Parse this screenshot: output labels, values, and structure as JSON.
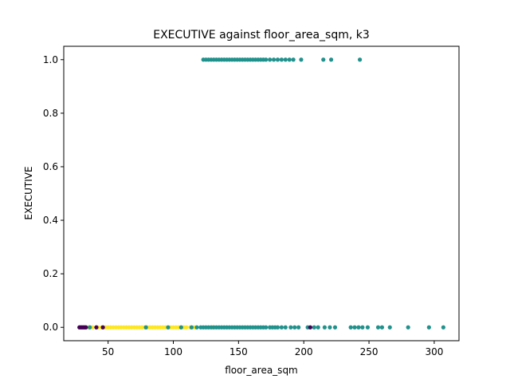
{
  "chart_data": {
    "type": "scatter",
    "title": "EXECUTIVE against floor_area_sqm, k3",
    "xlabel": "floor_area_sqm",
    "ylabel": "EXECUTIVE",
    "xlim": [
      16,
      319
    ],
    "ylim": [
      -0.05,
      1.05
    ],
    "xticks": [
      50,
      100,
      150,
      200,
      250,
      300
    ],
    "yticks": [
      0.0,
      0.2,
      0.4,
      0.6,
      0.8,
      1.0
    ],
    "xtick_labels": [
      "50",
      "100",
      "150",
      "200",
      "250",
      "300"
    ],
    "ytick_labels": [
      "0.0",
      "0.2",
      "0.4",
      "0.6",
      "0.8",
      "1.0"
    ],
    "grid": false,
    "legend": "none",
    "colors": {
      "cluster_purple": "#440154",
      "cluster_teal": "#21918c",
      "cluster_yellow": "#fde725"
    },
    "series": [
      {
        "color": "#fde725",
        "points": [
          {
            "x": 35,
            "y": 0
          },
          {
            "x": 38,
            "y": 0
          },
          {
            "x": 42,
            "y": 0
          },
          {
            "x": 45,
            "y": 0
          },
          {
            "x": 48,
            "y": 0
          },
          {
            "x": 50,
            "y": 0
          },
          {
            "x": 52,
            "y": 0
          },
          {
            "x": 54,
            "y": 0
          },
          {
            "x": 56,
            "y": 0
          },
          {
            "x": 58,
            "y": 0
          },
          {
            "x": 60,
            "y": 0
          },
          {
            "x": 62,
            "y": 0
          },
          {
            "x": 64,
            "y": 0
          },
          {
            "x": 66,
            "y": 0
          },
          {
            "x": 68,
            "y": 0
          },
          {
            "x": 70,
            "y": 0
          },
          {
            "x": 72,
            "y": 0
          },
          {
            "x": 74,
            "y": 0
          },
          {
            "x": 76,
            "y": 0
          },
          {
            "x": 78,
            "y": 0
          },
          {
            "x": 80,
            "y": 0
          },
          {
            "x": 82,
            "y": 0
          },
          {
            "x": 84,
            "y": 0
          },
          {
            "x": 86,
            "y": 0
          },
          {
            "x": 88,
            "y": 0
          },
          {
            "x": 90,
            "y": 0
          },
          {
            "x": 92,
            "y": 0
          },
          {
            "x": 94,
            "y": 0
          },
          {
            "x": 96,
            "y": 0
          },
          {
            "x": 98,
            "y": 0
          },
          {
            "x": 100,
            "y": 0
          },
          {
            "x": 102,
            "y": 0
          },
          {
            "x": 104,
            "y": 0
          },
          {
            "x": 106,
            "y": 0
          },
          {
            "x": 108,
            "y": 0
          },
          {
            "x": 110,
            "y": 0
          },
          {
            "x": 113,
            "y": 0
          },
          {
            "x": 116,
            "y": 0
          },
          {
            "x": 130,
            "y": 0
          }
        ]
      },
      {
        "color": "#21918c",
        "points": [
          {
            "x": 36,
            "y": 0
          },
          {
            "x": 79,
            "y": 0
          },
          {
            "x": 96,
            "y": 0
          },
          {
            "x": 106,
            "y": 0
          },
          {
            "x": 114,
            "y": 0
          },
          {
            "x": 118,
            "y": 0
          },
          {
            "x": 121,
            "y": 0
          },
          {
            "x": 123,
            "y": 0
          },
          {
            "x": 125,
            "y": 0
          },
          {
            "x": 127,
            "y": 0
          },
          {
            "x": 129,
            "y": 0
          },
          {
            "x": 131,
            "y": 0
          },
          {
            "x": 133,
            "y": 0
          },
          {
            "x": 135,
            "y": 0
          },
          {
            "x": 137,
            "y": 0
          },
          {
            "x": 139,
            "y": 0
          },
          {
            "x": 141,
            "y": 0
          },
          {
            "x": 143,
            "y": 0
          },
          {
            "x": 145,
            "y": 0
          },
          {
            "x": 147,
            "y": 0
          },
          {
            "x": 149,
            "y": 0
          },
          {
            "x": 151,
            "y": 0
          },
          {
            "x": 153,
            "y": 0
          },
          {
            "x": 155,
            "y": 0
          },
          {
            "x": 157,
            "y": 0
          },
          {
            "x": 159,
            "y": 0
          },
          {
            "x": 161,
            "y": 0
          },
          {
            "x": 163,
            "y": 0
          },
          {
            "x": 165,
            "y": 0
          },
          {
            "x": 167,
            "y": 0
          },
          {
            "x": 169,
            "y": 0
          },
          {
            "x": 171,
            "y": 0
          },
          {
            "x": 174,
            "y": 0
          },
          {
            "x": 176,
            "y": 0
          },
          {
            "x": 178,
            "y": 0
          },
          {
            "x": 180,
            "y": 0
          },
          {
            "x": 183,
            "y": 0
          },
          {
            "x": 186,
            "y": 0
          },
          {
            "x": 190,
            "y": 0
          },
          {
            "x": 193,
            "y": 0
          },
          {
            "x": 196,
            "y": 0
          },
          {
            "x": 203,
            "y": 0
          },
          {
            "x": 208,
            "y": 0
          },
          {
            "x": 211,
            "y": 0
          },
          {
            "x": 216,
            "y": 0
          },
          {
            "x": 220,
            "y": 0
          },
          {
            "x": 224,
            "y": 0
          },
          {
            "x": 236,
            "y": 0
          },
          {
            "x": 239,
            "y": 0
          },
          {
            "x": 242,
            "y": 0
          },
          {
            "x": 245,
            "y": 0
          },
          {
            "x": 249,
            "y": 0
          },
          {
            "x": 257,
            "y": 0
          },
          {
            "x": 260,
            "y": 0
          },
          {
            "x": 266,
            "y": 0
          },
          {
            "x": 280,
            "y": 0
          },
          {
            "x": 296,
            "y": 0
          },
          {
            "x": 307,
            "y": 0
          },
          {
            "x": 123,
            "y": 1
          },
          {
            "x": 125,
            "y": 1
          },
          {
            "x": 127,
            "y": 1
          },
          {
            "x": 129,
            "y": 1
          },
          {
            "x": 131,
            "y": 1
          },
          {
            "x": 133,
            "y": 1
          },
          {
            "x": 135,
            "y": 1
          },
          {
            "x": 137,
            "y": 1
          },
          {
            "x": 139,
            "y": 1
          },
          {
            "x": 141,
            "y": 1
          },
          {
            "x": 143,
            "y": 1
          },
          {
            "x": 145,
            "y": 1
          },
          {
            "x": 147,
            "y": 1
          },
          {
            "x": 149,
            "y": 1
          },
          {
            "x": 151,
            "y": 1
          },
          {
            "x": 153,
            "y": 1
          },
          {
            "x": 155,
            "y": 1
          },
          {
            "x": 157,
            "y": 1
          },
          {
            "x": 159,
            "y": 1
          },
          {
            "x": 161,
            "y": 1
          },
          {
            "x": 163,
            "y": 1
          },
          {
            "x": 165,
            "y": 1
          },
          {
            "x": 167,
            "y": 1
          },
          {
            "x": 169,
            "y": 1
          },
          {
            "x": 171,
            "y": 1
          },
          {
            "x": 174,
            "y": 1
          },
          {
            "x": 177,
            "y": 1
          },
          {
            "x": 180,
            "y": 1
          },
          {
            "x": 183,
            "y": 1
          },
          {
            "x": 186,
            "y": 1
          },
          {
            "x": 189,
            "y": 1
          },
          {
            "x": 192,
            "y": 1
          },
          {
            "x": 198,
            "y": 1
          },
          {
            "x": 215,
            "y": 1
          },
          {
            "x": 221,
            "y": 1
          },
          {
            "x": 243,
            "y": 1
          }
        ]
      },
      {
        "color": "#440154",
        "points": [
          {
            "x": 28,
            "y": 0
          },
          {
            "x": 29,
            "y": 0
          },
          {
            "x": 30,
            "y": 0
          },
          {
            "x": 31,
            "y": 0
          },
          {
            "x": 32,
            "y": 0
          },
          {
            "x": 33,
            "y": 0
          },
          {
            "x": 41,
            "y": 0
          },
          {
            "x": 46,
            "y": 0
          },
          {
            "x": 205,
            "y": 0
          }
        ]
      }
    ]
  }
}
